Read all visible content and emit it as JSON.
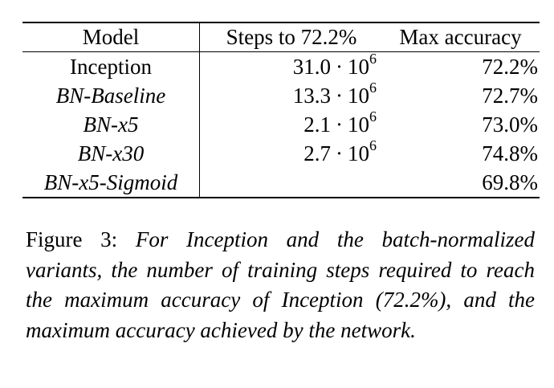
{
  "table": {
    "headers": {
      "model": "Model",
      "steps": "Steps to 72.2%",
      "accuracy": "Max accuracy"
    },
    "rows": [
      {
        "model": "Inception",
        "italic": false,
        "steps_mantissa": "31.0",
        "steps_exp": "6",
        "accuracy": "72.2%"
      },
      {
        "model": "BN-Baseline",
        "italic": true,
        "steps_mantissa": "13.3",
        "steps_exp": "6",
        "accuracy": "72.7%"
      },
      {
        "model": "BN-x5",
        "italic": true,
        "steps_mantissa": "2.1",
        "steps_exp": "6",
        "accuracy": "73.0%"
      },
      {
        "model": "BN-x30",
        "italic": true,
        "steps_mantissa": "2.7",
        "steps_exp": "6",
        "accuracy": "74.8%"
      },
      {
        "model": "BN-x5-Sigmoid",
        "italic": true,
        "steps_mantissa": "",
        "steps_exp": "",
        "accuracy": "69.8%"
      }
    ],
    "steps_base": "10",
    "steps_dot": "·"
  },
  "caption": {
    "label": "Figure 3:",
    "text": "For Inception and the batch-normalized variants, the number of training steps required to reach the maximum accuracy of Inception (72.2%), and the maximum accuracy achieved by the net­work."
  }
}
